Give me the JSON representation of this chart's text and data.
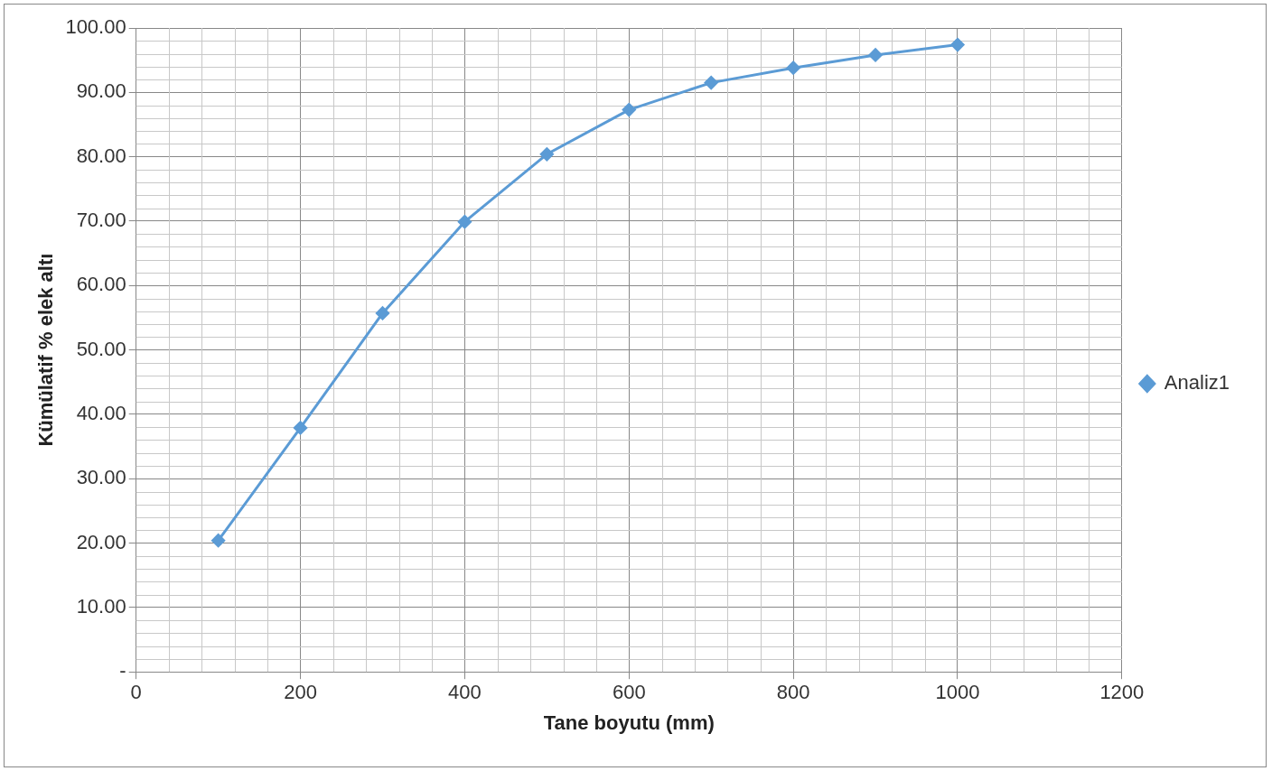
{
  "chart_data": {
    "type": "line",
    "xlabel": "Tane boyutu (mm)",
    "ylabel": "Kümülatif % elek altı",
    "x": [
      100,
      200,
      300,
      400,
      500,
      600,
      700,
      800,
      900,
      1000
    ],
    "series": [
      {
        "name": "Analiz1",
        "color": "#5b9bd5",
        "values": [
          20.4,
          37.9,
          55.7,
          69.9,
          80.4,
          87.3,
          91.5,
          93.8,
          95.8,
          97.4
        ]
      }
    ],
    "xlim": [
      0,
      1200
    ],
    "xticks": [
      0,
      200,
      400,
      600,
      800,
      1000,
      1200
    ],
    "ylim": [
      0,
      100
    ],
    "yticks": [
      {
        "value": 0,
        "label": "-"
      },
      {
        "value": 10,
        "label": "10.00"
      },
      {
        "value": 20,
        "label": "20.00"
      },
      {
        "value": 30,
        "label": "30.00"
      },
      {
        "value": 40,
        "label": "40.00"
      },
      {
        "value": 50,
        "label": "50.00"
      },
      {
        "value": 60,
        "label": "60.00"
      },
      {
        "value": 70,
        "label": "70.00"
      },
      {
        "value": 80,
        "label": "80.00"
      },
      {
        "value": 90,
        "label": "90.00"
      },
      {
        "value": 100,
        "label": "100.00"
      }
    ],
    "grid": true,
    "legend": "right",
    "marker": "diamond",
    "line_style": "solid"
  }
}
